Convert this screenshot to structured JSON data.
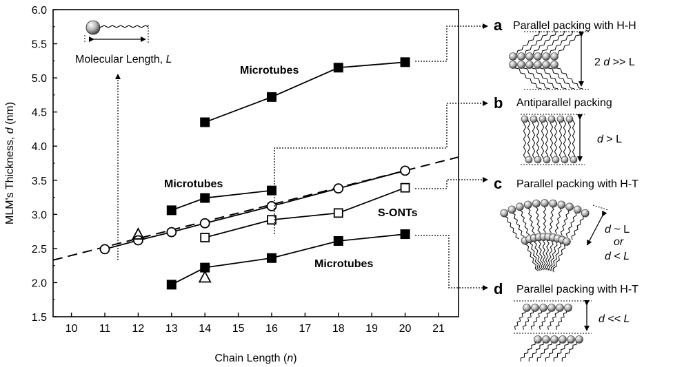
{
  "chart_data": {
    "type": "scatter",
    "xlabel_main": "Chain Length (",
    "xlabel_var": "n",
    "xlabel_end": ")",
    "ylabel_main": "MLM's Thickness, ",
    "ylabel_var": "d",
    "ylabel_end": " (nm)",
    "x_ticks": [
      "10",
      "11",
      "12",
      "13",
      "14",
      "15",
      "16",
      "17",
      "18",
      "19",
      "20",
      "21"
    ],
    "y_ticks": [
      "1.5",
      "2.0",
      "2.5",
      "3.0",
      "3.5",
      "4.0",
      "4.5",
      "5.0",
      "5.5",
      "6.0"
    ],
    "xlim": [
      9.45,
      21.6
    ],
    "ylim": [
      1.5,
      6.0
    ],
    "series": [
      {
        "id": "microtubes-top",
        "marker": "filled-square",
        "connected": true,
        "x": [
          14,
          16,
          18,
          20
        ],
        "y": [
          4.35,
          4.72,
          5.15,
          5.23
        ]
      },
      {
        "id": "microtubes-middle",
        "marker": "filled-square",
        "connected": true,
        "x": [
          13,
          14,
          16
        ],
        "y": [
          3.06,
          3.24,
          3.35
        ]
      },
      {
        "id": "open-circles",
        "marker": "open-circle",
        "connected": true,
        "x": [
          11,
          12,
          13,
          14,
          16,
          18,
          20
        ],
        "y": [
          2.49,
          2.62,
          2.74,
          2.87,
          3.12,
          3.38,
          3.64
        ]
      },
      {
        "id": "s-onts",
        "marker": "open-square",
        "connected": true,
        "x": [
          14,
          16,
          18,
          20
        ],
        "y": [
          2.66,
          2.92,
          3.02,
          3.39
        ]
      },
      {
        "id": "microtubes-bottom",
        "marker": "filled-square",
        "connected": true,
        "x": [
          13,
          14,
          16,
          18,
          20
        ],
        "y": [
          1.97,
          2.22,
          2.36,
          2.61,
          2.71
        ]
      },
      {
        "id": "open-triangles",
        "marker": "open-triangle",
        "connected": false,
        "x": [
          12,
          14
        ],
        "y": [
          2.7,
          2.07
        ]
      }
    ],
    "trend_line": {
      "style": "dashed",
      "x": [
        9.45,
        21.6
      ],
      "y": [
        2.33,
        3.84
      ]
    },
    "labels": {
      "microtubes_top": "Microtubes",
      "microtubes_middle": "Microtubes",
      "microtubes_bottom": "Microtubes",
      "s_onts": "S-ONTs"
    },
    "inset": {
      "label_main": "Molecular Length, ",
      "label_var": "L"
    }
  },
  "panels": [
    {
      "letter": "a",
      "title": "Parallel packing with H-H",
      "rel_pre": "2 ",
      "rel_var": "d",
      "rel_post": " >> L"
    },
    {
      "letter": "b",
      "title": "Antiparallel packing",
      "rel_pre": "",
      "rel_var": "d",
      "rel_post": " > L"
    },
    {
      "letter": "c",
      "title": "Parallel packing with H-T",
      "rel_line1_var": "d",
      "rel_line1_post": " ~ L",
      "rel_line2": "or",
      "rel_line3_var": "d",
      "rel_line3_mid": " < ",
      "rel_line3_var2": "L"
    },
    {
      "letter": "d",
      "title": "Parallel packing with H-T",
      "rel_pre": "",
      "rel_var": "d",
      "rel_post": " << ",
      "rel_var2": "L"
    }
  ]
}
